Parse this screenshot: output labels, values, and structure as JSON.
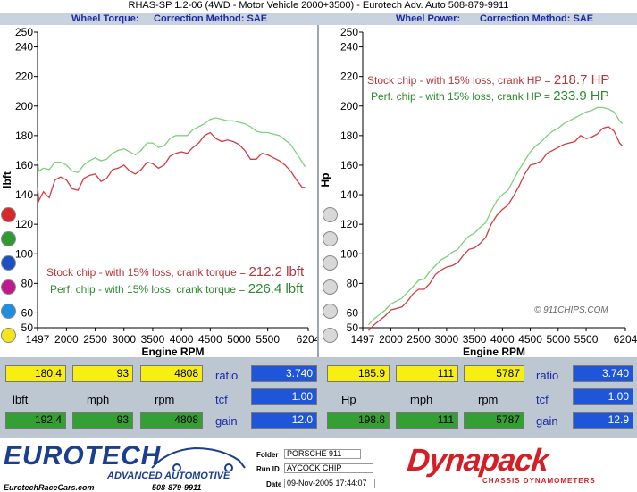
{
  "header": {
    "title": "RHAS-SP 1.2-06  (4WD - Motor Vehicle 2000+3500) - Eurotech Adv. Auto 508-879-9911",
    "left_label": "Wheel Torque:",
    "left_method": "Correction Method: SAE",
    "right_label": "Wheel Power:",
    "right_method": "Correction Method: SAE"
  },
  "chart_data": [
    {
      "type": "line",
      "title": "Wheel Torque",
      "xlabel": "Engine RPM",
      "ylabel": "lbft",
      "xlim": [
        1497,
        6204
      ],
      "ylim": [
        50,
        250
      ],
      "xticks": [
        1497,
        2000,
        2500,
        3000,
        3500,
        4000,
        4500,
        5000,
        5500,
        6204
      ],
      "yticks": [
        50,
        60,
        80,
        100,
        120,
        140,
        160,
        180,
        200,
        220,
        240,
        250
      ],
      "series": [
        {
          "color": "#d43b3f",
          "x": [
            1497,
            1520,
            1600,
            1700,
            1800,
            1900,
            2000,
            2100,
            2200,
            2300,
            2400,
            2500,
            2600,
            2700,
            2800,
            2900,
            3000,
            3100,
            3200,
            3300,
            3400,
            3500,
            3600,
            3700,
            3800,
            3900,
            4000,
            4100,
            4200,
            4300,
            4400,
            4500,
            4600,
            4700,
            4800,
            4900,
            5000,
            5100,
            5200,
            5300,
            5400,
            5500,
            5600,
            5700,
            5800,
            5900,
            6000,
            6100,
            6150
          ],
          "y": [
            145,
            136,
            142,
            138,
            150,
            152,
            150,
            144,
            143,
            151,
            153,
            154,
            149,
            151,
            157,
            158,
            160,
            156,
            154,
            157,
            162,
            161,
            158,
            160,
            166,
            168,
            169,
            168,
            172,
            175,
            180,
            182,
            178,
            176,
            177,
            176,
            174,
            170,
            164,
            164,
            168,
            167,
            165,
            163,
            160,
            156,
            150,
            145,
            145
          ]
        },
        {
          "color": "#7ecf7a",
          "x": [
            1497,
            1520,
            1600,
            1700,
            1800,
            1900,
            2000,
            2100,
            2200,
            2300,
            2400,
            2500,
            2600,
            2700,
            2800,
            2900,
            3000,
            3100,
            3200,
            3300,
            3400,
            3500,
            3600,
            3700,
            3800,
            3900,
            4000,
            4100,
            4200,
            4300,
            4400,
            4500,
            4600,
            4700,
            4800,
            4900,
            5000,
            5100,
            5200,
            5300,
            5400,
            5500,
            5600,
            5700,
            5800,
            5900,
            6000,
            6100,
            6150
          ],
          "y": [
            163,
            156,
            158,
            157,
            162,
            162,
            160,
            156,
            155,
            160,
            163,
            165,
            163,
            164,
            168,
            170,
            171,
            169,
            167,
            170,
            175,
            175,
            172,
            173,
            178,
            180,
            180,
            180,
            184,
            186,
            188,
            191,
            192,
            191,
            190,
            190,
            189,
            188,
            186,
            183,
            182,
            182,
            181,
            180,
            177,
            174,
            168,
            162,
            159
          ]
        }
      ],
      "annotations": [
        {
          "text": "Stock chip - with 15% loss, crank torque = ",
          "value": "212.2 lbft",
          "color": "#b53539"
        },
        {
          "text": "Perf. chip - with 15% loss, crank torque = ",
          "value": "226.4 lbft",
          "color": "#2c8a2c"
        }
      ]
    },
    {
      "type": "line",
      "title": "Wheel Power",
      "xlabel": "Engine RPM",
      "ylabel": "Hp",
      "xlim": [
        1497,
        6204
      ],
      "ylim": [
        50,
        250
      ],
      "xticks": [
        1497,
        2000,
        2500,
        3000,
        3500,
        4000,
        4500,
        5000,
        5500,
        6204
      ],
      "yticks": [
        50,
        60,
        80,
        100,
        120,
        140,
        160,
        180,
        200,
        220,
        240,
        250
      ],
      "series": [
        {
          "color": "#d43b3f",
          "x": [
            1600,
            1700,
            1800,
            1900,
            2000,
            2100,
            2200,
            2300,
            2400,
            2500,
            2600,
            2700,
            2800,
            2900,
            3000,
            3100,
            3200,
            3300,
            3400,
            3500,
            3600,
            3700,
            3800,
            3900,
            4000,
            4100,
            4200,
            4300,
            4400,
            4500,
            4600,
            4700,
            4800,
            4900,
            5000,
            5100,
            5200,
            5300,
            5400,
            5500,
            5600,
            5700,
            5800,
            5900,
            6000,
            6100,
            6150
          ],
          "y": [
            48,
            52,
            55,
            58,
            62,
            63,
            64,
            68,
            73,
            76,
            76,
            80,
            86,
            89,
            91,
            92,
            94,
            99,
            103,
            104,
            107,
            111,
            120,
            126,
            130,
            133,
            139,
            146,
            154,
            160,
            161,
            163,
            168,
            170,
            172,
            174,
            175,
            176,
            180,
            178,
            179,
            181,
            185,
            186,
            183,
            175,
            173
          ]
        },
        {
          "color": "#7ecf7a",
          "x": [
            1600,
            1700,
            1800,
            1900,
            2000,
            2100,
            2200,
            2300,
            2400,
            2500,
            2600,
            2700,
            2800,
            2900,
            3000,
            3100,
            3200,
            3300,
            3400,
            3500,
            3600,
            3700,
            3800,
            3900,
            4000,
            4100,
            4200,
            4300,
            4400,
            4500,
            4600,
            4700,
            4800,
            4900,
            5000,
            5100,
            5200,
            5300,
            5400,
            5500,
            5600,
            5700,
            5800,
            5900,
            6000,
            6100,
            6150
          ],
          "y": [
            52,
            56,
            59,
            62,
            66,
            68,
            70,
            74,
            78,
            82,
            83,
            88,
            92,
            96,
            98,
            101,
            103,
            108,
            112,
            114,
            118,
            121,
            129,
            136,
            140,
            143,
            150,
            157,
            163,
            169,
            173,
            176,
            180,
            183,
            185,
            188,
            190,
            192,
            194,
            196,
            197,
            199,
            199,
            198,
            196,
            190,
            188
          ]
        }
      ],
      "annotations": [
        {
          "text": "Stock chip - with 15% loss, crank HP = ",
          "value": "218.7 HP",
          "color": "#b53539"
        },
        {
          "text": "Perf. chip - with 15% loss, crank HP = ",
          "value": "233.9 HP",
          "color": "#2c8a2c"
        }
      ]
    }
  ],
  "watermark": "© 911CHIPS.COM",
  "dots_left": [
    "#d9282c",
    "#2f9a33",
    "#1c4fc0",
    "#c0188e",
    "#1f8de0",
    "#f4e619"
  ],
  "dots_right": [
    "#d8d8d8",
    "#d8d8d8",
    "#d8d8d8",
    "#d8d8d8",
    "#d8d8d8",
    "#d8d8d8"
  ],
  "panel": {
    "left": {
      "row1": [
        "180.4",
        "93",
        "4808"
      ],
      "labels": [
        "lbft",
        "mph",
        "rpm"
      ],
      "row3": [
        "192.4",
        "93",
        "4808"
      ],
      "side_labels": [
        "ratio",
        "tcf",
        "gain"
      ],
      "side_values": [
        "3.740",
        "1.00",
        "12.0"
      ]
    },
    "right": {
      "row1": [
        "185.9",
        "111",
        "5787"
      ],
      "labels": [
        "Hp",
        "mph",
        "rpm"
      ],
      "row3": [
        "198.8",
        "111",
        "5787"
      ],
      "side_labels": [
        "ratio",
        "tcf",
        "gain"
      ],
      "side_values": [
        "3.740",
        "1.00",
        "12.9"
      ]
    }
  },
  "footer": {
    "brand": "EUROTECH",
    "subbrand": "ADVANCED AUTOMOTIVE",
    "site": "EurotechRaceCars.com",
    "phone": "508-879-9911",
    "folder_label": "Folder",
    "folder_value": "PORSCHE 911",
    "runid_label": "Run ID",
    "runid_value": "AYCOCK CHIP",
    "date_label": "Date",
    "date_value": "09-Nov-2005  17:44:07",
    "dyno_brand": "Dynapack",
    "dyno_sub": "CHASSIS  DYNAMOMETERS"
  }
}
